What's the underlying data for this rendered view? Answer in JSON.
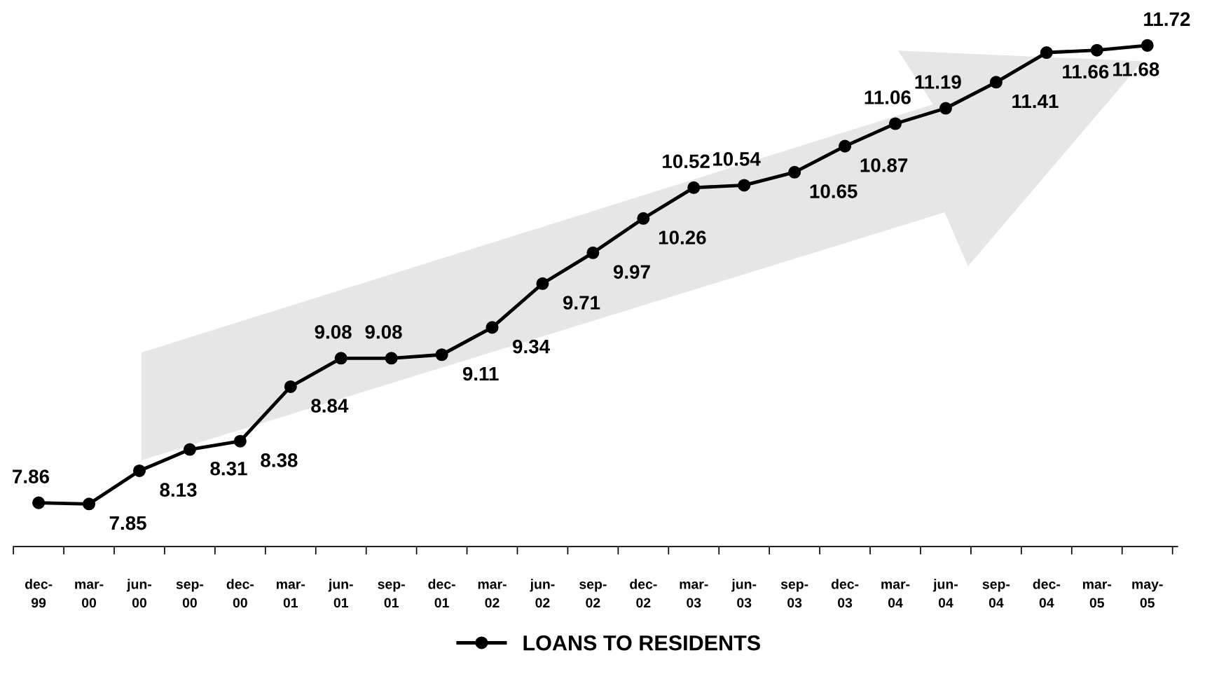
{
  "chart_data": {
    "type": "line",
    "categories": [
      "dec-\n99",
      "mar-\n00",
      "jun-\n00",
      "sep-\n00",
      "dec-\n00",
      "mar-\n01",
      "jun-\n01",
      "sep-\n01",
      "dec-\n01",
      "mar-\n02",
      "jun-\n02",
      "sep-\n02",
      "dec-\n02",
      "mar-\n03",
      "jun-\n03",
      "sep-\n03",
      "dec-\n03",
      "mar-\n04",
      "jun-\n04",
      "sep-\n04",
      "dec-\n04",
      "mar-\n05",
      "may-\n05"
    ],
    "series": [
      {
        "name": "LOANS TO RESIDENTS",
        "color": "#000000",
        "values": [
          7.86,
          7.85,
          8.13,
          8.31,
          8.38,
          8.84,
          9.08,
          9.08,
          9.11,
          9.34,
          9.71,
          9.97,
          10.26,
          10.52,
          10.54,
          10.65,
          10.87,
          11.06,
          11.19,
          11.41,
          11.66,
          11.68,
          11.72
        ]
      }
    ],
    "data_labels": true,
    "marker": "circle",
    "line_style": "solid",
    "grid": false,
    "legend": "bottom"
  }
}
